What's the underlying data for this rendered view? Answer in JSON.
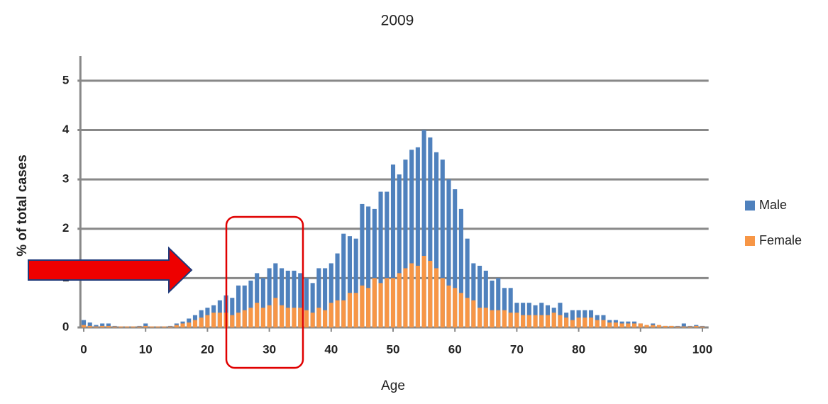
{
  "chart_data": {
    "type": "bar",
    "title": "2009",
    "x_label": "Age",
    "y_label": "% of total cases",
    "x": [
      0,
      1,
      2,
      3,
      4,
      5,
      6,
      7,
      8,
      9,
      10,
      11,
      12,
      13,
      14,
      15,
      16,
      17,
      18,
      19,
      20,
      21,
      22,
      23,
      24,
      25,
      26,
      27,
      28,
      29,
      30,
      31,
      32,
      33,
      34,
      35,
      36,
      37,
      38,
      39,
      40,
      41,
      42,
      43,
      44,
      45,
      46,
      47,
      48,
      49,
      50,
      51,
      52,
      53,
      54,
      55,
      56,
      57,
      58,
      59,
      60,
      61,
      62,
      63,
      64,
      65,
      66,
      67,
      68,
      69,
      70,
      71,
      72,
      73,
      74,
      75,
      76,
      77,
      78,
      79,
      80,
      81,
      82,
      83,
      84,
      85,
      86,
      87,
      88,
      89,
      90,
      91,
      92,
      93,
      94,
      95,
      96,
      97,
      98,
      99,
      100
    ],
    "series": [
      {
        "name": "Male",
        "color": "#4f81bd",
        "values": [
          0.15,
          0.1,
          0.05,
          0.08,
          0.08,
          0.03,
          0.02,
          0.02,
          0.02,
          0.03,
          0.08,
          0.02,
          0.02,
          0.02,
          0.03,
          0.08,
          0.12,
          0.18,
          0.25,
          0.35,
          0.4,
          0.45,
          0.55,
          0.65,
          0.6,
          0.85,
          0.85,
          0.95,
          1.1,
          1.0,
          1.2,
          1.3,
          1.2,
          1.15,
          1.15,
          1.1,
          1.0,
          0.9,
          1.2,
          1.2,
          1.3,
          1.5,
          1.9,
          1.85,
          1.8,
          2.5,
          2.45,
          2.4,
          2.75,
          2.75,
          3.3,
          3.1,
          3.4,
          3.6,
          3.65,
          4.0,
          3.85,
          3.55,
          3.4,
          3.0,
          2.8,
          2.4,
          1.8,
          1.3,
          1.25,
          1.15,
          0.95,
          1.0,
          0.8,
          0.8,
          0.5,
          0.5,
          0.5,
          0.45,
          0.5,
          0.45,
          0.4,
          0.5,
          0.3,
          0.35,
          0.35,
          0.35,
          0.35,
          0.25,
          0.25,
          0.15,
          0.15,
          0.12,
          0.12,
          0.12,
          0.08,
          0.05,
          0.08,
          0.03,
          0.03,
          0.03,
          0.03,
          0.08,
          0.03,
          0.05,
          0.03
        ]
      },
      {
        "name": "Female",
        "color": "#f79646",
        "values": [
          0.05,
          0.03,
          0.02,
          0.03,
          0.03,
          0.02,
          0.02,
          0.02,
          0.02,
          0.02,
          0.03,
          0.02,
          0.02,
          0.02,
          0.02,
          0.05,
          0.08,
          0.1,
          0.15,
          0.2,
          0.25,
          0.3,
          0.3,
          0.3,
          0.25,
          0.3,
          0.35,
          0.4,
          0.5,
          0.4,
          0.45,
          0.6,
          0.45,
          0.4,
          0.4,
          0.4,
          0.35,
          0.3,
          0.4,
          0.35,
          0.5,
          0.55,
          0.55,
          0.7,
          0.7,
          0.85,
          0.8,
          1.0,
          0.9,
          1.0,
          1.0,
          1.1,
          1.2,
          1.3,
          1.25,
          1.45,
          1.35,
          1.2,
          1.0,
          0.85,
          0.8,
          0.7,
          0.6,
          0.55,
          0.4,
          0.4,
          0.35,
          0.35,
          0.35,
          0.3,
          0.3,
          0.25,
          0.25,
          0.25,
          0.25,
          0.25,
          0.3,
          0.25,
          0.2,
          0.15,
          0.2,
          0.2,
          0.2,
          0.15,
          0.15,
          0.1,
          0.1,
          0.08,
          0.08,
          0.08,
          0.08,
          0.05,
          0.05,
          0.05,
          0.03,
          0.03,
          0.02,
          0.02,
          0.02,
          0.03,
          0.02
        ]
      }
    ],
    "xlim": [
      -1,
      101
    ],
    "xticks": [
      0,
      10,
      20,
      30,
      40,
      50,
      60,
      70,
      80,
      90,
      100
    ],
    "ylim": [
      0,
      5.5
    ],
    "yticks": [
      0,
      1,
      2,
      3,
      4,
      5
    ],
    "grid": true,
    "legend": "right"
  }
}
